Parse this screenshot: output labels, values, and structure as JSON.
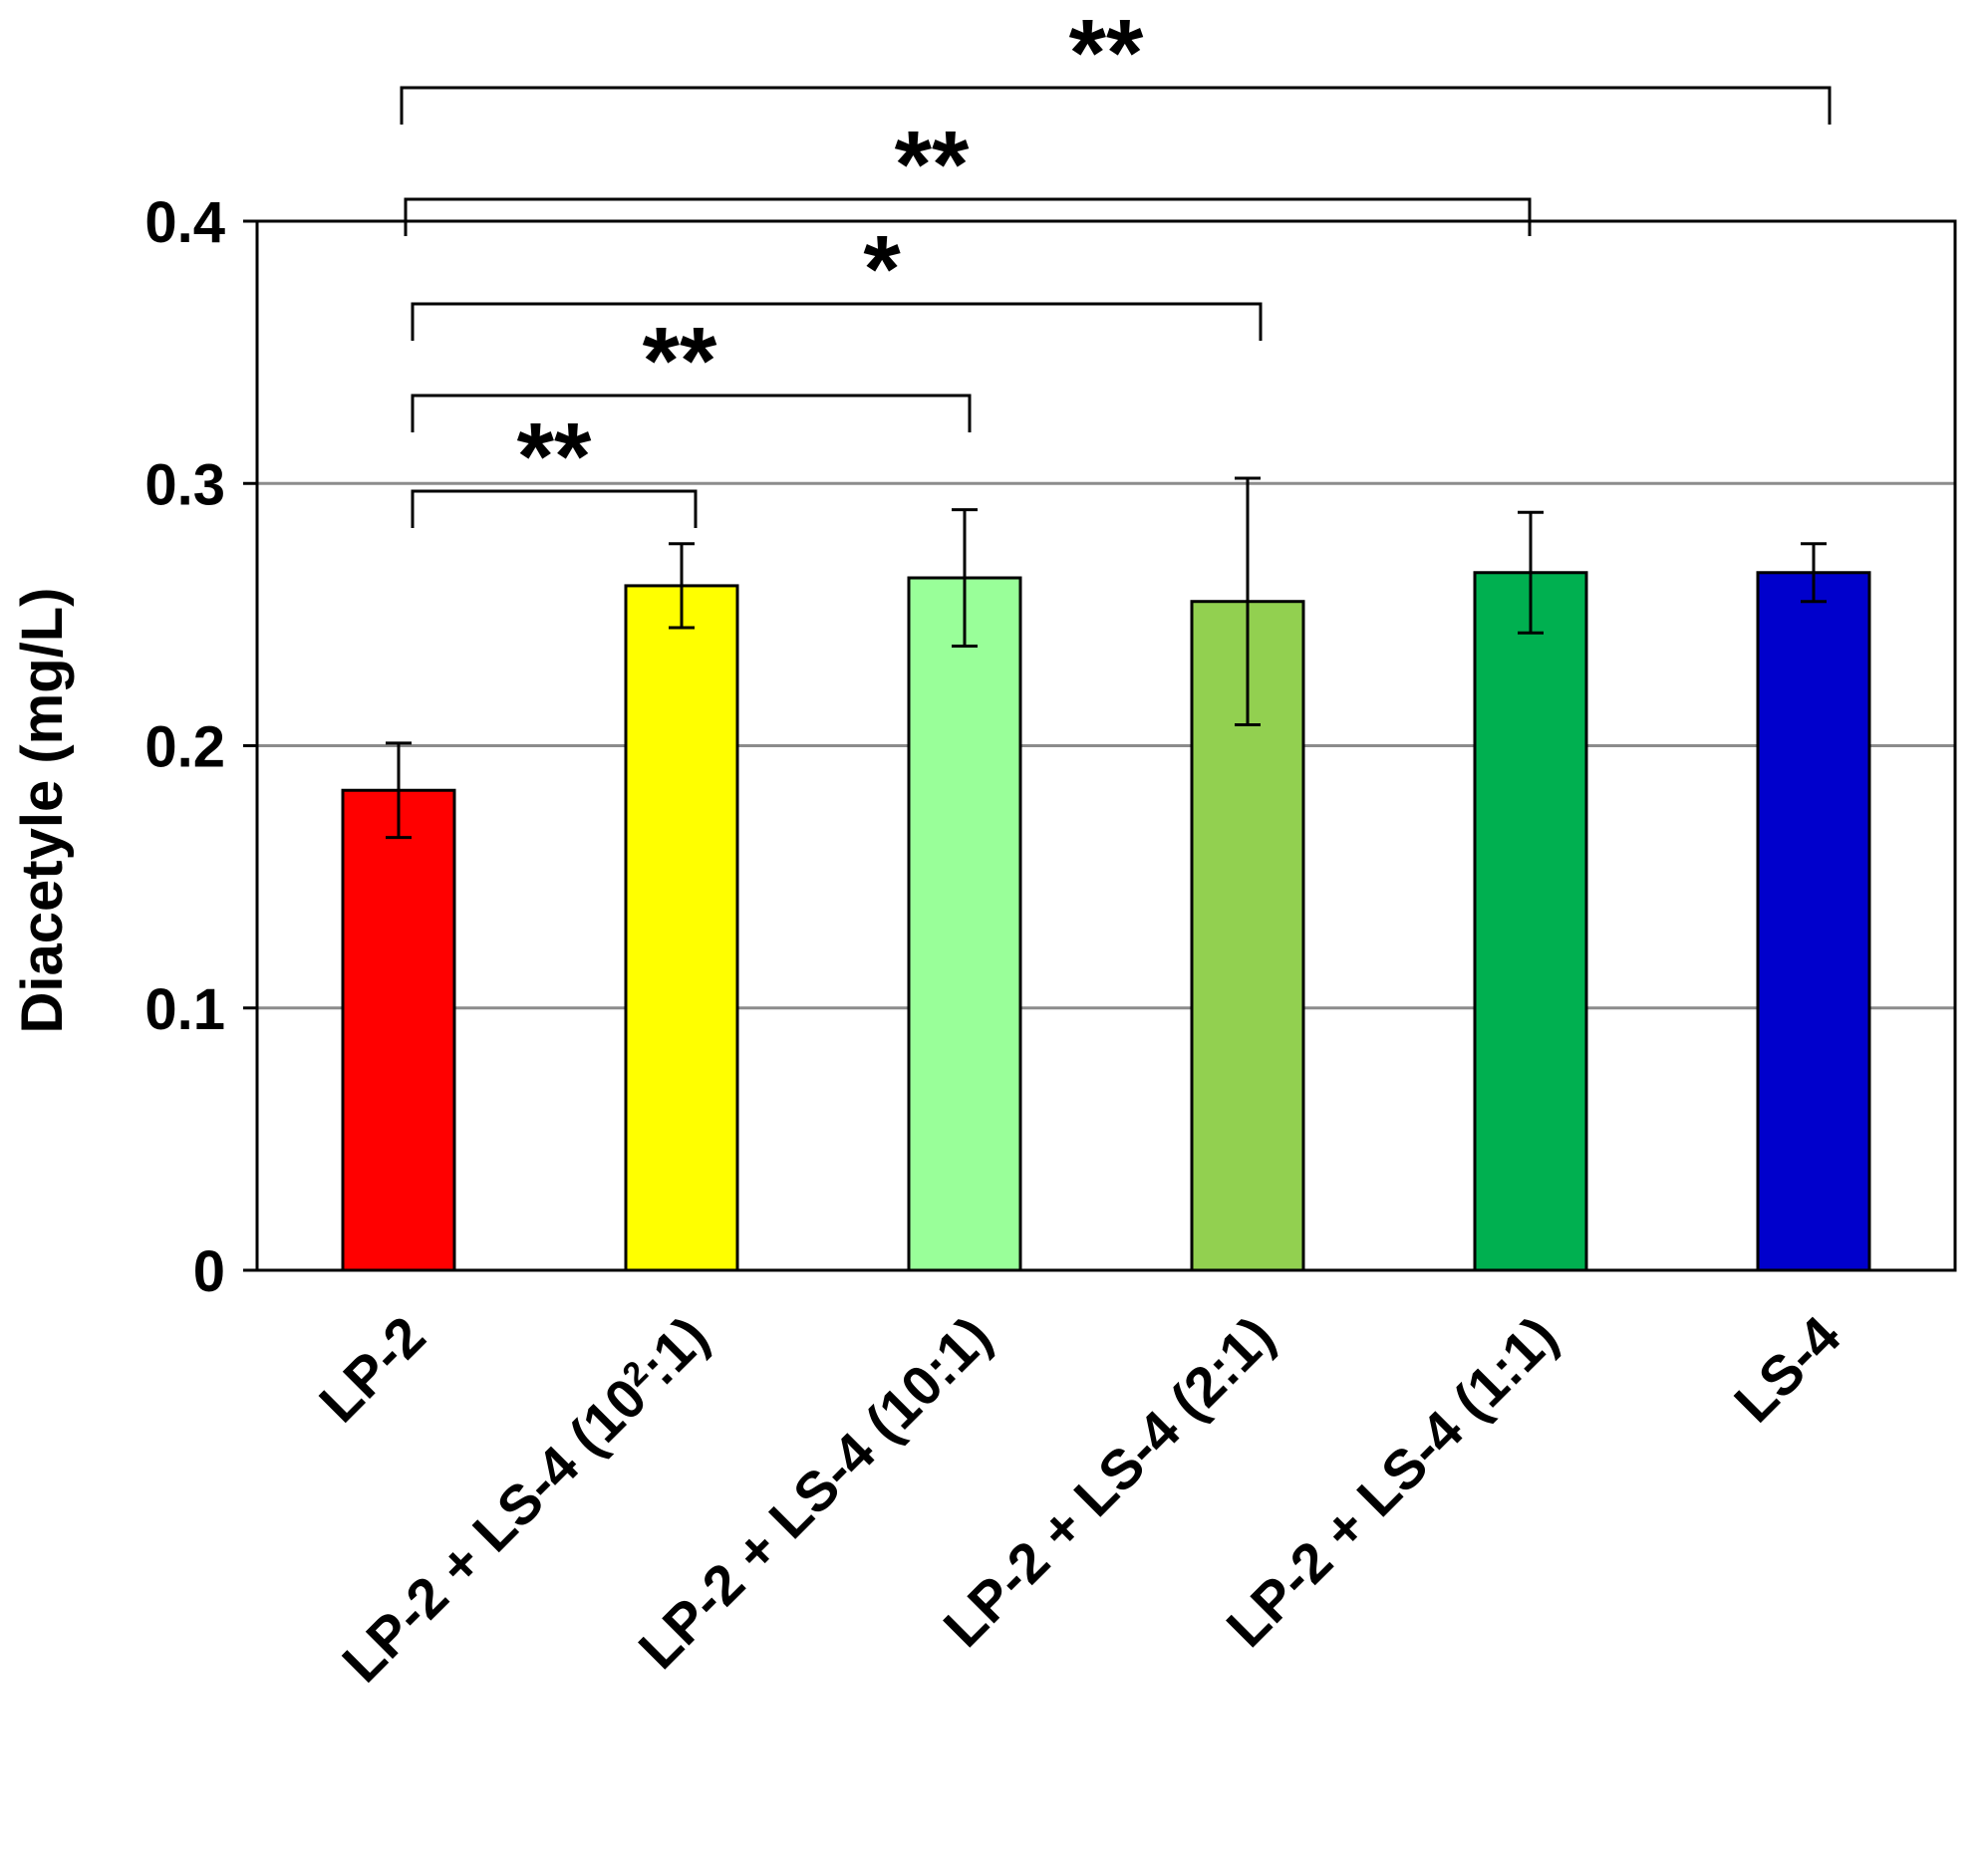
{
  "chart_data": {
    "type": "bar",
    "title": "",
    "xlabel": "",
    "ylabel": "Diacetyle (mg/L)",
    "ylim": [
      0,
      0.4
    ],
    "yticks": [
      0,
      0.1,
      0.2,
      0.3,
      0.4
    ],
    "ytick_labels": [
      "0",
      "0.1",
      "0.2",
      "0.3",
      "0.4"
    ],
    "grid": "horizontal",
    "categories": [
      {
        "parts": [
          "LP-2"
        ]
      },
      {
        "parts": [
          "LP-2 + LS-4 (10",
          "2",
          ":1)"
        ]
      },
      {
        "parts": [
          "LP-2 + LS-4 (10:1)"
        ]
      },
      {
        "parts": [
          "LP-2 + LS-4 (2:1)"
        ]
      },
      {
        "parts": [
          "LP-2 + LS-4 (1:1)"
        ]
      },
      {
        "parts": [
          "LS-4"
        ]
      }
    ],
    "values": [
      0.183,
      0.261,
      0.264,
      0.255,
      0.266,
      0.266
    ],
    "errors": [
      0.018,
      0.016,
      0.026,
      0.047,
      0.023,
      0.011
    ],
    "colors": [
      "#FF0000",
      "#FFFF00",
      "#99FF99",
      "#92D050",
      "#00B050",
      "#0000CC"
    ],
    "significance": [
      {
        "from": 0,
        "to": 1,
        "label": "**"
      },
      {
        "from": 0,
        "to": 2,
        "label": "**"
      },
      {
        "from": 0,
        "to": 3,
        "label": "*"
      },
      {
        "from": 0,
        "to": 4,
        "label": "**"
      },
      {
        "from": 0,
        "to": 5,
        "label": "**"
      }
    ]
  }
}
